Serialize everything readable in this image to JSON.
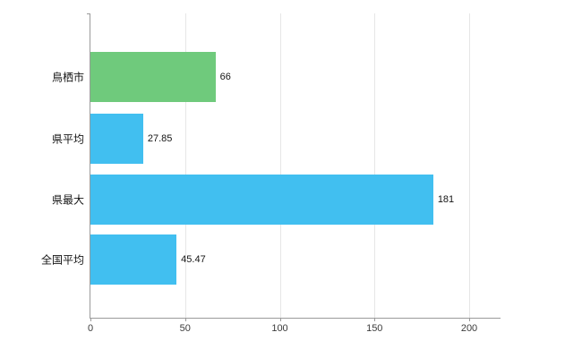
{
  "chart_data": {
    "type": "bar",
    "orientation": "horizontal",
    "title": "",
    "xlabel": "",
    "ylabel": "",
    "categories": [
      "鳥栖市",
      "県平均",
      "県最大",
      "全国平均"
    ],
    "values": [
      66,
      27.85,
      181,
      45.47
    ],
    "value_labels": [
      "66",
      "27.85",
      "181",
      "45.47"
    ],
    "bar_colors": [
      "#6fca7c",
      "#41bff0",
      "#41bff0",
      "#41bff0"
    ],
    "x_ticks": [
      0,
      50,
      100,
      150,
      200
    ],
    "x_tick_labels": [
      "0",
      "50",
      "100",
      "150",
      "200"
    ],
    "xlim": [
      0,
      216
    ],
    "grid": true,
    "legend": "none",
    "axis_color": "#9a9a9a",
    "grid_color": "#e6e6e6",
    "background_color": "#ffffff"
  }
}
